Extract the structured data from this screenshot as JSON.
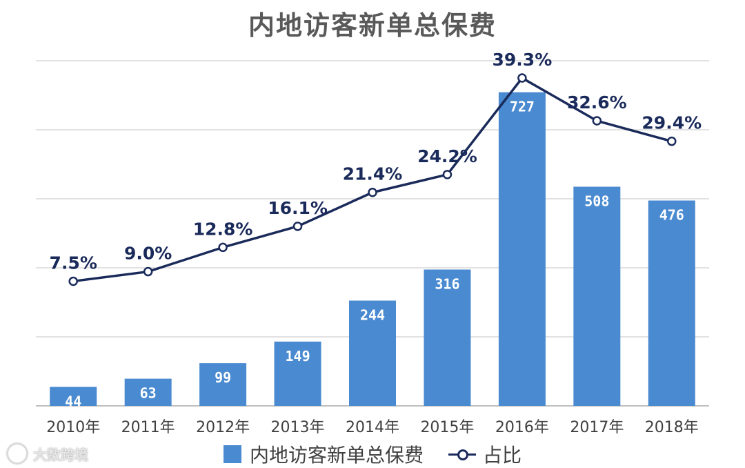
{
  "chart_data": {
    "type": "bar+line",
    "title": "内地访客新单总保费",
    "categories": [
      "2010年",
      "2011年",
      "2012年",
      "2013年",
      "2014年",
      "2015年",
      "2016年",
      "2017年",
      "2018年"
    ],
    "series": [
      {
        "name": "内地访客新单总保费",
        "type": "bar",
        "values": [
          44,
          63,
          99,
          149,
          244,
          316,
          727,
          508,
          476
        ]
      },
      {
        "name": "占比",
        "type": "line",
        "values": [
          7.5,
          9.0,
          12.8,
          16.1,
          21.4,
          24.2,
          39.3,
          32.6,
          29.4
        ],
        "labels": [
          "7.5%",
          "9.0%",
          "12.8%",
          "16.1%",
          "21.4%",
          "24.2%",
          "39.3%",
          "32.6%",
          "29.4%"
        ]
      }
    ],
    "ylim_bar": [
      0,
      800
    ],
    "ylim_line": [
      -12,
      42
    ],
    "gridlines": 5,
    "legend": "bottom"
  },
  "colors": {
    "bar": "#4a8ad0",
    "line": "#1a2a5a",
    "grid": "#d9d9d9",
    "axis": "#bfbfbf",
    "bar_label": "#ffffff"
  },
  "watermark": {
    "text": "大数跨境",
    "icon": "logo-icon"
  }
}
